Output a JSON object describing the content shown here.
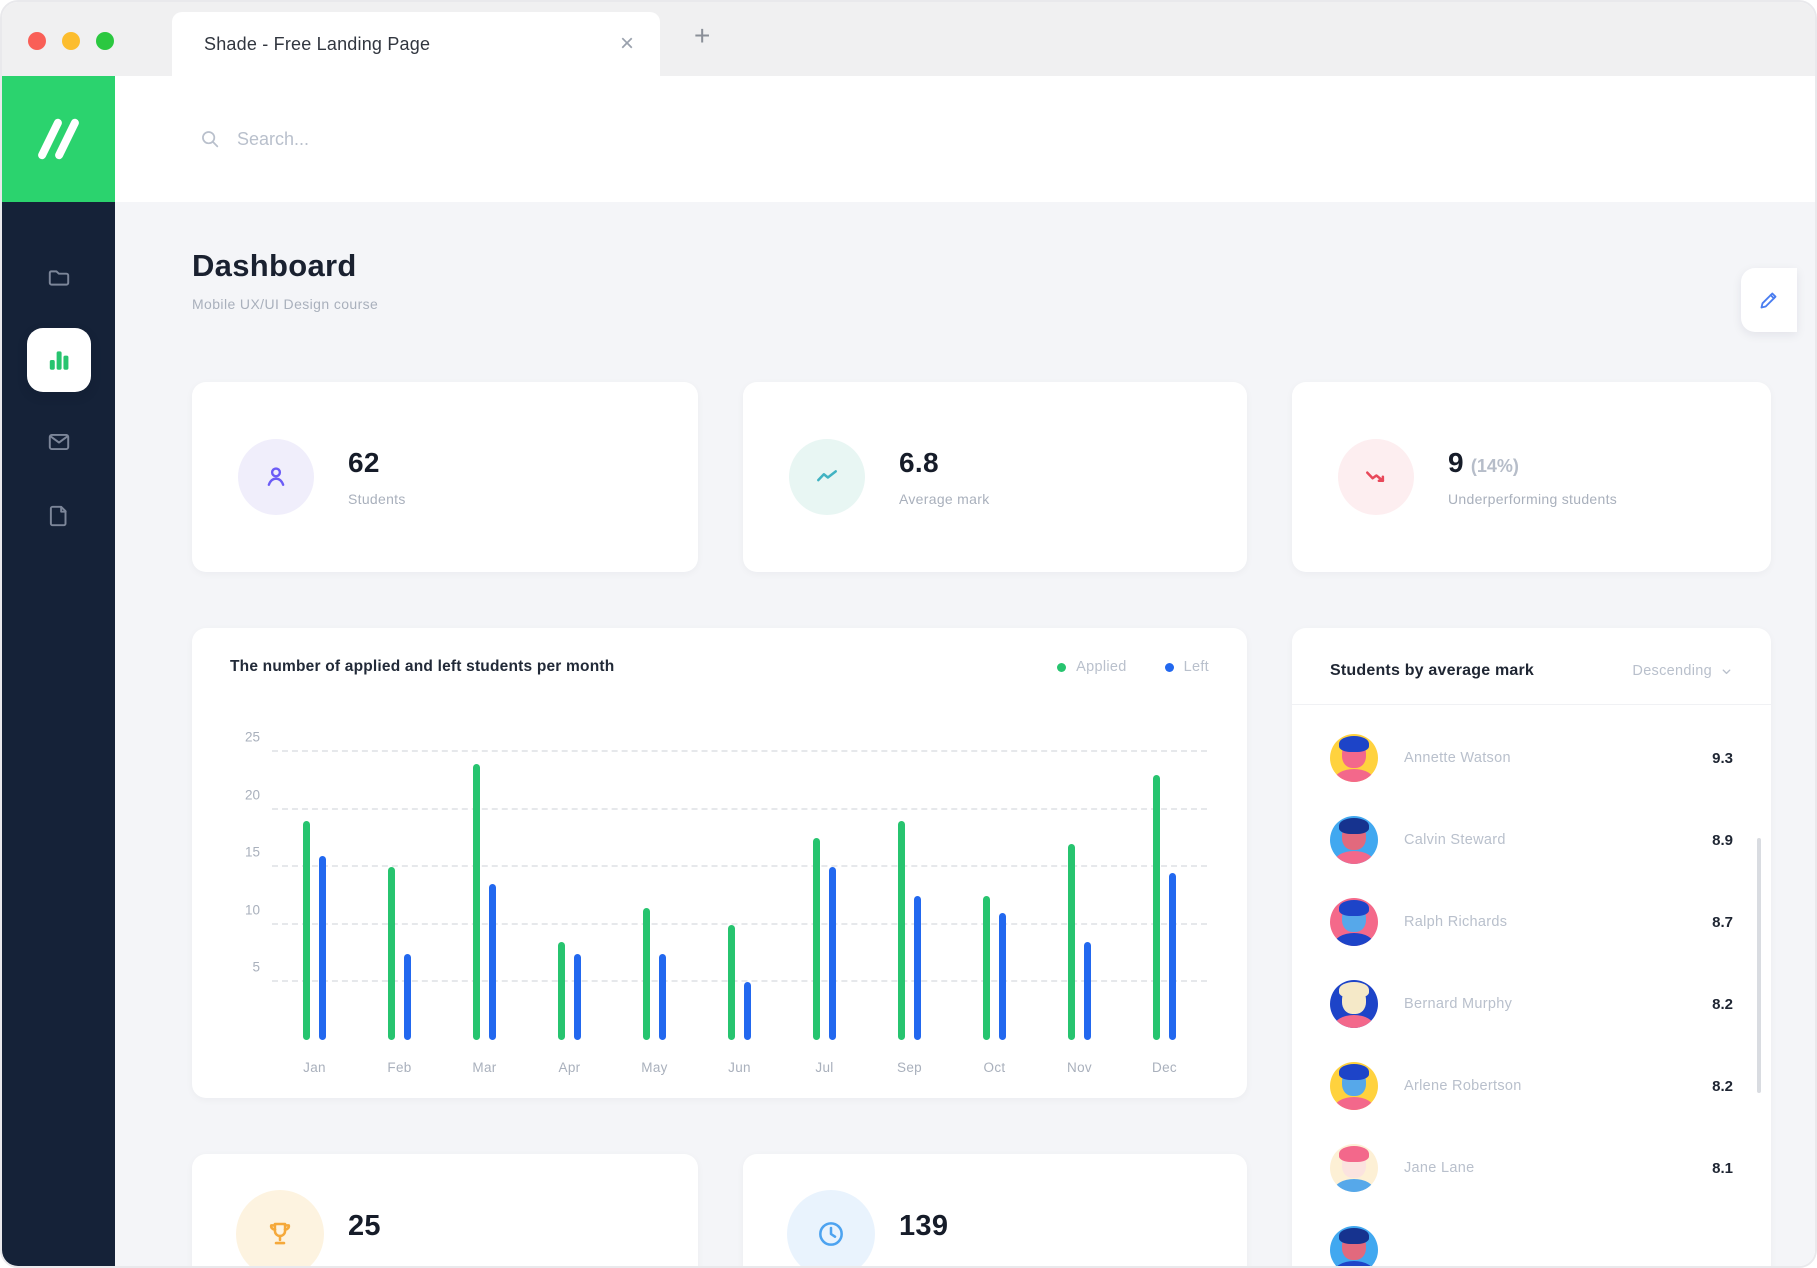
{
  "window": {
    "tab_title": "Shade - Free Landing Page",
    "close_label": "×",
    "new_tab_label": "+"
  },
  "topbar": {
    "search_placeholder": "Search..."
  },
  "sidebar": {
    "colors": {
      "background": "#152238",
      "logo_background": "#2bd36e",
      "active_item_background": "#ffffff",
      "active_icon": "#27c46f"
    },
    "items": [
      {
        "id": "projects",
        "icon": "folder-icon",
        "active": false
      },
      {
        "id": "dashboard",
        "icon": "bar-chart-icon",
        "active": true
      },
      {
        "id": "messages",
        "icon": "mail-icon",
        "active": false
      },
      {
        "id": "documents",
        "icon": "document-icon",
        "active": false
      }
    ]
  },
  "page": {
    "title": "Dashboard",
    "subtitle": "Mobile UX/UI Design course",
    "edit_icon": "pencil-icon"
  },
  "stats": [
    {
      "value": "62",
      "suffix": "",
      "label": "Students",
      "icon": "person-icon",
      "accent": "#6c5cf6",
      "bg": "#f0eefb"
    },
    {
      "value": "6.8",
      "suffix": "",
      "label": "Average mark",
      "icon": "trend-up-icon",
      "accent": "#41b3c2",
      "bg": "#e8f6f3"
    },
    {
      "value": "9",
      "suffix": "(14%)",
      "label": "Underperforming students",
      "icon": "trend-down-icon",
      "accent": "#e8485a",
      "bg": "#fdeef0"
    }
  ],
  "chart_data": {
    "type": "bar",
    "title": "The number of applied and left students per month",
    "categories": [
      "Jan",
      "Feb",
      "Mar",
      "Apr",
      "May",
      "Jun",
      "Jul",
      "Sep",
      "Oct",
      "Nov",
      "Dec"
    ],
    "series": [
      {
        "name": "Applied",
        "color": "#27c46f",
        "values": [
          19,
          15,
          24,
          8.5,
          11.5,
          10,
          17.5,
          19,
          12.5,
          17,
          23
        ]
      },
      {
        "name": "Left",
        "color": "#2268ef",
        "values": [
          16,
          7.5,
          13.5,
          7.5,
          7.5,
          5,
          15,
          12.5,
          11,
          8.5,
          14.5
        ]
      }
    ],
    "yticks": [
      5,
      10,
      15,
      20,
      25
    ],
    "ylim": [
      0,
      25
    ],
    "grid": "dashed-horizontal",
    "legend_position": "top-right"
  },
  "students_panel": {
    "title": "Students by average mark",
    "sort_label": "Descending",
    "students": [
      {
        "name": "Annette Watson",
        "mark": "9.3",
        "avatar": {
          "bg": "#ffd23e",
          "hair": "#1d44c8",
          "face": "#f3688b",
          "shirt": "#f3688b"
        }
      },
      {
        "name": "Calvin Steward",
        "mark": "8.9",
        "avatar": {
          "bg": "#41a8f0",
          "hair": "#16338f",
          "face": "#e2697d",
          "shirt": "#f3688b"
        }
      },
      {
        "name": "Ralph Richards",
        "mark": "8.7",
        "avatar": {
          "bg": "#f4698a",
          "hair": "#1d44c8",
          "face": "#56a8ea",
          "shirt": "#1d44c8"
        }
      },
      {
        "name": "Bernard Murphy",
        "mark": "8.2",
        "avatar": {
          "bg": "#1d44c8",
          "hair": "#f5e9c8",
          "face": "#f5e9c8",
          "shirt": "#f3688b"
        }
      },
      {
        "name": "Arlene Robertson",
        "mark": "8.2",
        "avatar": {
          "bg": "#ffd23e",
          "hair": "#1d44c8",
          "face": "#56a8ea",
          "shirt": "#f3688b"
        }
      },
      {
        "name": "Jane Lane",
        "mark": "8.1",
        "avatar": {
          "bg": "#fdf0d5",
          "hair": "#f3688b",
          "face": "#fbe3df",
          "shirt": "#56a8ea"
        }
      }
    ],
    "partial_avatar": {
      "bg": "#41a8f0",
      "hair": "#16338f",
      "face": "#e2697d",
      "shirt": "#1d44c8"
    }
  },
  "bottom_stats": [
    {
      "value": "25",
      "icon": "trophy-icon",
      "accent": "#f5a93b",
      "bg": "#fdf3e0"
    },
    {
      "value": "139",
      "icon": "clock-icon",
      "accent": "#4da3f0",
      "bg": "#e9f3fd"
    }
  ]
}
